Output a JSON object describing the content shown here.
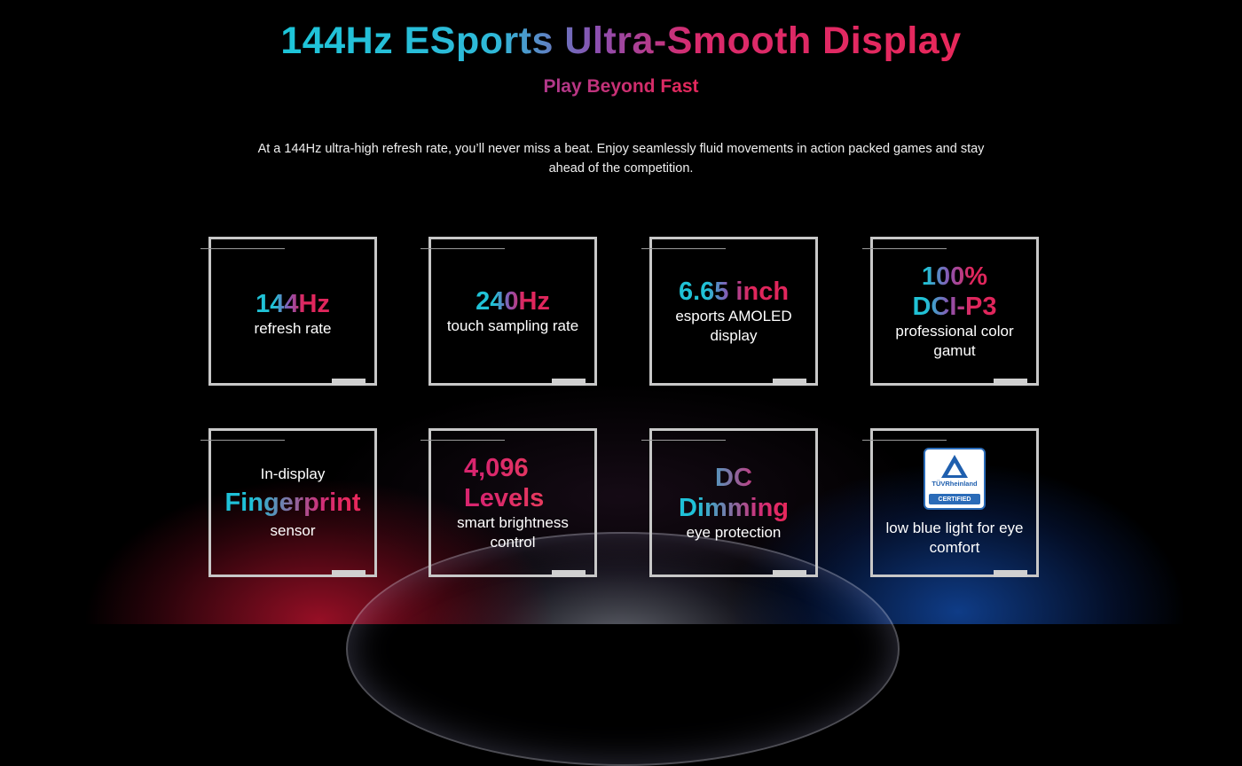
{
  "hero": {
    "title": "144Hz ESports Ultra-Smooth Display",
    "subtitle": "Play Beyond Fast",
    "description": "At a 144Hz ultra-high refresh rate, you’ll never miss a beat. Enjoy seamlessly fluid movements in action packed games and stay ahead of the competition."
  },
  "features": [
    {
      "headline": "144Hz",
      "caption": "refresh rate"
    },
    {
      "headline": "240Hz",
      "caption": "touch sampling rate"
    },
    {
      "headline": "6.65 inch",
      "caption": "esports AMOLED display"
    },
    {
      "headline": "100% DCI-P3",
      "caption": "professional color gamut"
    },
    {
      "pre": "In-display",
      "headline": "Fingerprint",
      "caption": "sensor"
    },
    {
      "headline": "4,096 Levels",
      "caption": "smart brightness control"
    },
    {
      "headline": "DC Dimming",
      "caption": "eye protection"
    },
    {
      "icon": "tuv-rheinland-certified-icon",
      "cert_brand": "TÜVRheinland",
      "cert_badge": "CERTIFIED",
      "caption": "low blue light for eye comfort"
    }
  ],
  "colors": {
    "background": "#000000",
    "cyan": "#1cc6d9",
    "pink": "#e3285d",
    "card_border": "#c8c8c8"
  }
}
